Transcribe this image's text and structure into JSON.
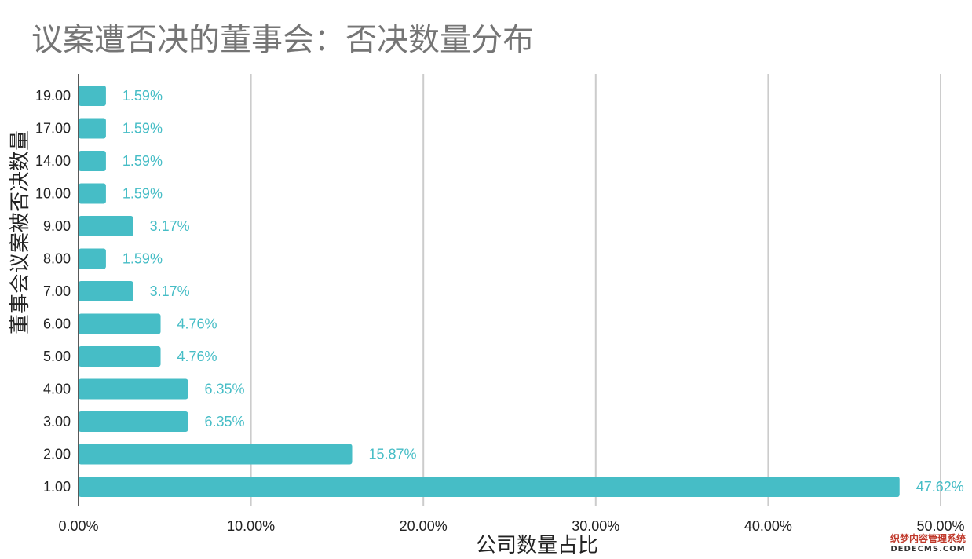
{
  "chart_data": {
    "type": "bar",
    "orientation": "horizontal",
    "title": "议案遭否决的董事会：否决数量分布",
    "xlabel": "公司数量占比",
    "ylabel": "董事会议案被否决数量",
    "categories": [
      "19.00",
      "17.00",
      "14.00",
      "10.00",
      "9.00",
      "8.00",
      "7.00",
      "6.00",
      "5.00",
      "4.00",
      "3.00",
      "2.00",
      "1.00"
    ],
    "values": [
      1.59,
      1.59,
      1.59,
      1.59,
      3.17,
      1.59,
      3.17,
      4.76,
      4.76,
      6.35,
      6.35,
      15.87,
      47.62
    ],
    "value_labels": [
      "1.59%",
      "1.59%",
      "1.59%",
      "1.59%",
      "3.17%",
      "1.59%",
      "3.17%",
      "4.76%",
      "4.76%",
      "6.35%",
      "6.35%",
      "15.87%",
      "47.62%"
    ],
    "xticks": [
      0,
      10,
      20,
      30,
      40,
      50
    ],
    "xtick_labels": [
      "0.00%",
      "10.00%",
      "20.00%",
      "30.00%",
      "40.00%",
      "50.00%"
    ],
    "xlim": [
      0,
      50
    ],
    "grid": true,
    "bar_color": "#46bdc6",
    "grid_color": "#cccccc"
  },
  "watermark": {
    "cn": "织梦内容管理系统",
    "en": "DEDECMS.COM"
  }
}
